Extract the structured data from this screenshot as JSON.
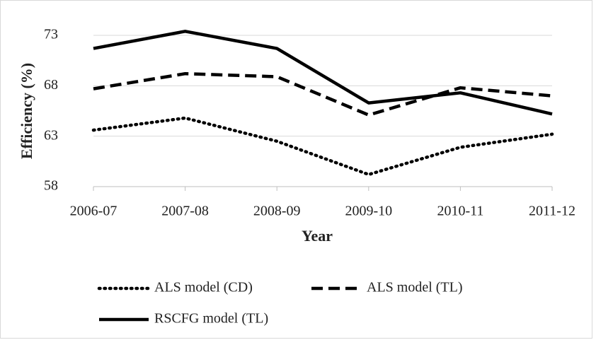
{
  "chart_data": {
    "type": "line",
    "x_label": "Year",
    "y_label": "Efficiency (%)",
    "categories": [
      "2006-07",
      "2007-08",
      "2008-09",
      "2009-10",
      "2010-11",
      "2011-12"
    ],
    "series": [
      {
        "name": "ALS model (CD)",
        "color": "#000000",
        "style": "dotted",
        "values": [
          63.6,
          64.8,
          62.5,
          59.2,
          61.9,
          63.2
        ]
      },
      {
        "name": "ALS model (TL)",
        "color": "#000000",
        "style": "dashed",
        "values": [
          67.7,
          69.2,
          68.9,
          65.1,
          67.8,
          67.0
        ]
      },
      {
        "name": "RSCFG model (TL)",
        "color": "#000000",
        "style": "solid",
        "values": [
          71.7,
          73.4,
          71.7,
          66.3,
          67.3,
          65.2
        ]
      }
    ],
    "ylim": [
      58,
      73
    ],
    "yticks": [
      58,
      63,
      68,
      73
    ],
    "grid": true
  }
}
